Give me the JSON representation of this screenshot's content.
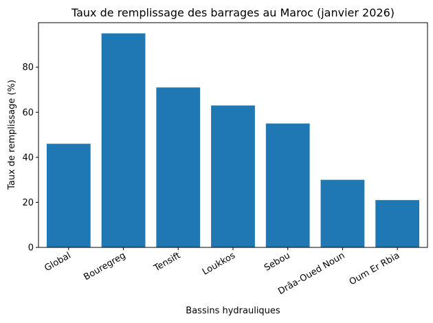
{
  "chart_data": {
    "type": "bar",
    "title": "Taux de remplissage des barrages au Maroc (janvier 2026)",
    "xlabel": "Bassins hydrauliques",
    "ylabel": "Taux de remplissage (%)",
    "categories": [
      "Global",
      "Bouregreg",
      "Tensift",
      "Loukkos",
      "Sebou",
      "Drâa-Oued Noun",
      "Oum Er Rbia"
    ],
    "values": [
      46,
      95,
      71,
      63,
      55,
      30,
      21
    ],
    "ylim": [
      0,
      99.75
    ],
    "yticks": [
      0,
      20,
      40,
      60,
      80
    ],
    "bar_color": "#1f77b4",
    "grid": false,
    "legend": "none"
  }
}
